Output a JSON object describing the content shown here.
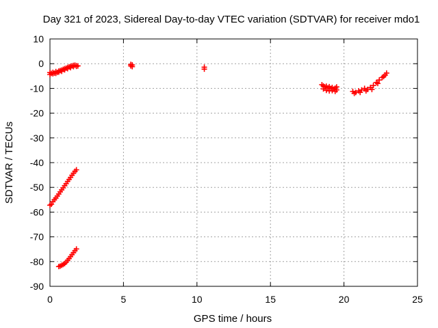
{
  "chart_data": {
    "type": "scatter",
    "title": "Day 321 of 2023, Sidereal Day-to-day VTEC variation (SDTVAR) for receiver mdo1",
    "xlabel": "GPS time / hours",
    "ylabel": "SDTVAR / TECUs",
    "xlim": [
      0,
      25
    ],
    "ylim": [
      -90,
      10
    ],
    "xticks": [
      "0",
      "5",
      "10",
      "15",
      "20",
      "25"
    ],
    "yticks": [
      "-90",
      "-80",
      "-70",
      "-60",
      "-50",
      "-40",
      "-30",
      "-20",
      "-10",
      "0",
      "10"
    ],
    "grid": true,
    "marker_color": "#ff0000",
    "series": [
      {
        "values": [
          [
            0.0,
            -3.6
          ],
          [
            0.1,
            -3.9
          ],
          [
            0.2,
            -3.5
          ],
          [
            0.3,
            -3.8
          ],
          [
            0.4,
            -3.2
          ],
          [
            0.5,
            -3.5
          ],
          [
            0.6,
            -3.0
          ],
          [
            0.7,
            -2.8
          ],
          [
            0.8,
            -2.6
          ],
          [
            0.9,
            -2.3
          ],
          [
            1.0,
            -2.0
          ],
          [
            1.1,
            -1.8
          ],
          [
            1.2,
            -1.5
          ],
          [
            1.3,
            -1.3
          ],
          [
            1.4,
            -1.1
          ],
          [
            1.5,
            -0.9
          ],
          [
            1.6,
            -0.7
          ],
          [
            1.7,
            -0.6
          ],
          [
            1.8,
            -0.8
          ],
          [
            1.9,
            -0.9
          ],
          [
            0.0,
            -4.4
          ],
          [
            0.2,
            -4.1
          ],
          [
            0.4,
            -3.9
          ],
          [
            0.6,
            -3.4
          ],
          [
            0.8,
            -3.1
          ],
          [
            1.0,
            -2.5
          ],
          [
            1.2,
            -2.0
          ],
          [
            1.4,
            -1.6
          ],
          [
            1.6,
            -1.2
          ],
          [
            1.8,
            -1.1
          ],
          [
            5.5,
            -0.3
          ],
          [
            5.6,
            -1.2
          ],
          [
            5.5,
            -0.9
          ],
          [
            5.6,
            -0.5
          ],
          [
            10.5,
            -1.4
          ],
          [
            10.5,
            -2.2
          ],
          [
            18.5,
            -8.5
          ],
          [
            18.6,
            -9.0
          ],
          [
            18.7,
            -9.4
          ],
          [
            18.8,
            -9.1
          ],
          [
            18.9,
            -9.8
          ],
          [
            19.0,
            -9.3
          ],
          [
            19.1,
            -10.0
          ],
          [
            19.2,
            -9.6
          ],
          [
            19.3,
            -10.3
          ],
          [
            19.4,
            -9.9
          ],
          [
            19.5,
            -10.6
          ],
          [
            18.6,
            -10.2
          ],
          [
            18.8,
            -10.8
          ],
          [
            19.0,
            -11.0
          ],
          [
            19.2,
            -10.9
          ],
          [
            19.4,
            -11.2
          ],
          [
            19.5,
            -9.4
          ],
          [
            20.6,
            -11.2
          ],
          [
            20.8,
            -11.6
          ],
          [
            21.0,
            -11.0
          ],
          [
            21.2,
            -10.6
          ],
          [
            21.4,
            -10.0
          ],
          [
            21.6,
            -10.4
          ],
          [
            21.8,
            -9.6
          ],
          [
            22.0,
            -8.8
          ],
          [
            22.2,
            -7.6
          ],
          [
            22.4,
            -6.6
          ],
          [
            22.6,
            -5.6
          ],
          [
            22.8,
            -4.6
          ],
          [
            22.9,
            -3.8
          ],
          [
            20.7,
            -12.0
          ],
          [
            21.1,
            -11.6
          ],
          [
            21.5,
            -11.0
          ],
          [
            21.9,
            -10.4
          ],
          [
            22.3,
            -8.0
          ],
          [
            22.7,
            -5.2
          ],
          [
            0.0,
            -57.2
          ],
          [
            0.1,
            -56.8
          ],
          [
            0.2,
            -55.8
          ],
          [
            0.3,
            -55.0
          ],
          [
            0.4,
            -54.3
          ],
          [
            0.5,
            -53.5
          ],
          [
            0.6,
            -52.7
          ],
          [
            0.7,
            -51.8
          ],
          [
            0.8,
            -51.0
          ],
          [
            0.9,
            -50.2
          ],
          [
            1.0,
            -49.3
          ],
          [
            1.1,
            -48.5
          ],
          [
            1.2,
            -47.6
          ],
          [
            1.3,
            -46.8
          ],
          [
            1.4,
            -46.0
          ],
          [
            1.5,
            -45.1
          ],
          [
            1.6,
            -44.3
          ],
          [
            1.7,
            -43.5
          ],
          [
            1.8,
            -42.9
          ],
          [
            0.6,
            -82.0
          ],
          [
            0.7,
            -81.8
          ],
          [
            0.8,
            -81.5
          ],
          [
            0.9,
            -81.2
          ],
          [
            1.0,
            -80.8
          ],
          [
            1.1,
            -80.2
          ],
          [
            1.2,
            -79.5
          ],
          [
            1.3,
            -78.8
          ],
          [
            1.4,
            -78.0
          ],
          [
            1.5,
            -77.2
          ],
          [
            1.6,
            -76.4
          ],
          [
            1.7,
            -75.6
          ],
          [
            1.8,
            -74.9
          ]
        ]
      }
    ]
  }
}
